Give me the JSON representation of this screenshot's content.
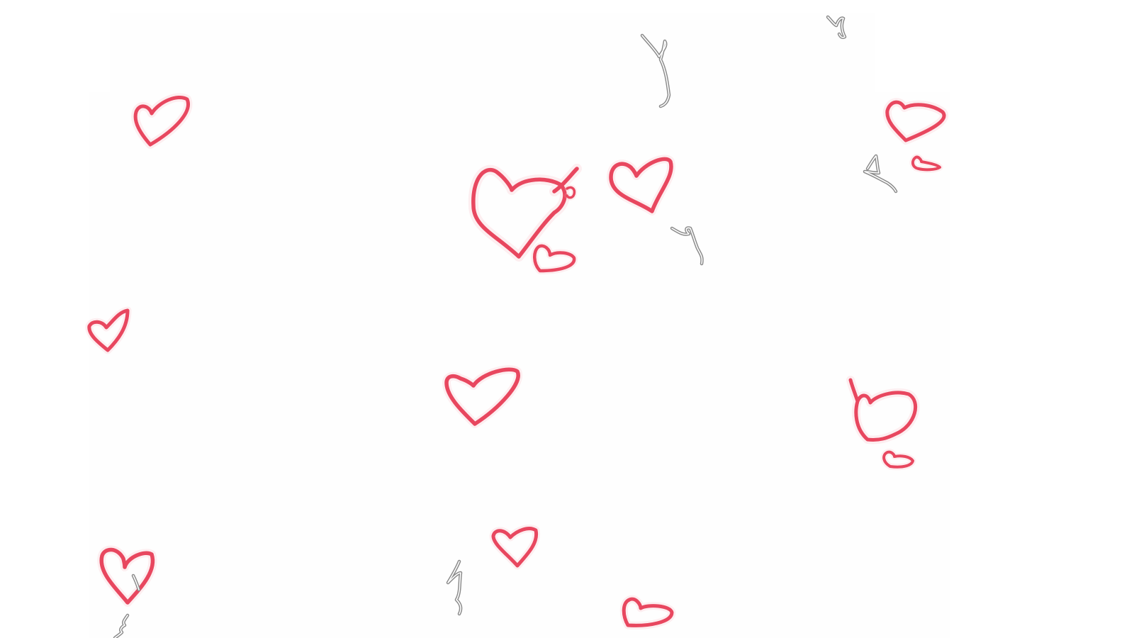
{
  "canvas": {
    "background_color": "#ffffff",
    "panel_color": "#fefefe"
  },
  "colors": {
    "heart_stroke": "#e8475f",
    "heart_glow": "#f7a6b3",
    "squiggle_stroke": "#8a8a8a"
  },
  "hearts": [
    "heart-icon",
    "heart-icon",
    "heart-icon",
    "heart-icon",
    "heart-icon",
    "heart-icon",
    "heart-icon",
    "heart-icon",
    "heart-icon",
    "heart-icon",
    "heart-icon",
    "heart-icon",
    "heart-icon",
    "heart-icon"
  ],
  "squiggles": [
    "squiggle-icon",
    "squiggle-icon",
    "squiggle-icon",
    "squiggle-icon",
    "squiggle-icon",
    "squiggle-icon",
    "squiggle-icon"
  ]
}
